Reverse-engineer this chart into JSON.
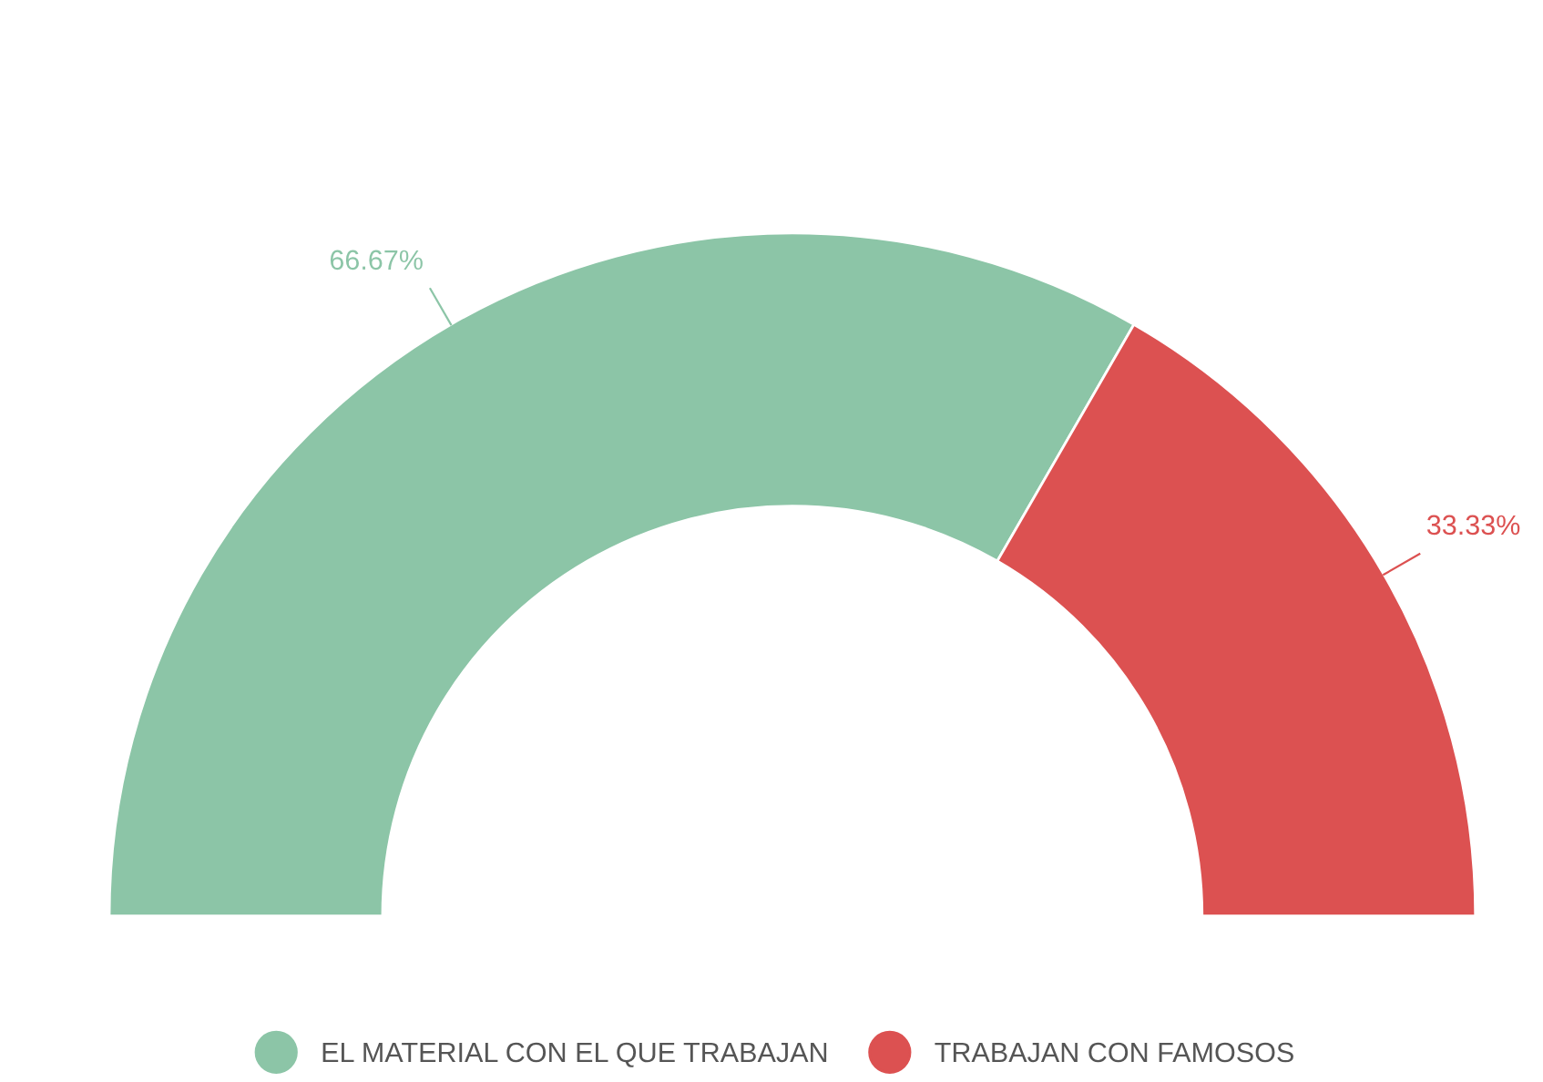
{
  "chart_data": {
    "type": "donut",
    "categories": [
      "EL MATERIAL CON EL QUE TRABAJAN",
      "TRABAJAN CON FAMOSOS"
    ],
    "values": [
      66.67,
      33.33
    ],
    "colors": [
      "#8cc5a7",
      "#dc5151"
    ],
    "value_labels": [
      "66.67%",
      "33.33%"
    ],
    "legend": "bottom"
  }
}
